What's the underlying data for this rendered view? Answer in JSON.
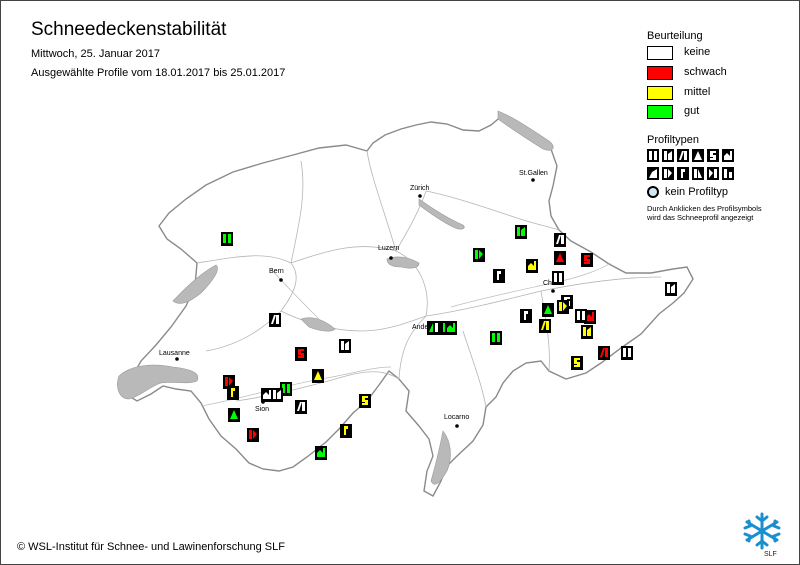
{
  "header": {
    "title": "Schneedeckenstabilität",
    "date": "Mittwoch, 25. Januar 2017",
    "range": "Ausgewählte Profile vom 18.01.2017 bis 25.01.2017"
  },
  "legend": {
    "title": "Beurteilung",
    "items": [
      {
        "label": "keine",
        "color": "#ffffff"
      },
      {
        "label": "schwach",
        "color": "#ff0000"
      },
      {
        "label": "mittel",
        "color": "#ffff00"
      },
      {
        "label": "gut",
        "color": "#00ff00"
      }
    ]
  },
  "profile_types": {
    "title": "Profiltypen",
    "no_type_label": "kein Profiltyp",
    "note_line1": "Durch Anklicken des Profilsymbols",
    "note_line2": "wird das Schneeprofil angezeigt"
  },
  "cities": {
    "zurich": "Zürich",
    "st_gallen": "St.Gallen",
    "luzern": "Luzern",
    "bern": "Bern",
    "chur": "Chur",
    "andermatt": "Andermatt",
    "lausanne": "Lausanne",
    "sion": "Sion",
    "locarno": "Locarno"
  },
  "profiles": [
    {
      "rating": "gut"
    },
    {
      "rating": "gut"
    },
    {
      "rating": "keine"
    },
    {
      "rating": "schwach"
    },
    {
      "rating": "schwach"
    },
    {
      "rating": "gut"
    },
    {
      "rating": "keine"
    },
    {
      "rating": "mittel"
    },
    {
      "rating": "keine"
    },
    {
      "rating": "keine"
    },
    {
      "rating": "keine"
    },
    {
      "rating": "keine"
    },
    {
      "rating": "gut"
    },
    {
      "rating": "mittel"
    },
    {
      "rating": "keine"
    },
    {
      "rating": "schwach"
    },
    {
      "rating": "keine"
    },
    {
      "rating": "mittel"
    },
    {
      "rating": "mittel"
    },
    {
      "rating": "schwach"
    },
    {
      "rating": "gut"
    },
    {
      "rating": "keine"
    },
    {
      "rating": "gut"
    },
    {
      "rating": "gut"
    },
    {
      "rating": "gut"
    },
    {
      "rating": "keine"
    },
    {
      "rating": "schwach"
    },
    {
      "rating": "mittel"
    },
    {
      "rating": "mittel"
    },
    {
      "rating": "schwach"
    },
    {
      "rating": "mittel"
    },
    {
      "rating": "keine"
    },
    {
      "rating": "gut"
    },
    {
      "rating": "keine"
    },
    {
      "rating": "keine"
    },
    {
      "rating": "mittel"
    },
    {
      "rating": "gut"
    },
    {
      "rating": "schwach"
    },
    {
      "rating": "mittel"
    },
    {
      "rating": "gut"
    },
    {
      "rating": "keine"
    }
  ],
  "footer": {
    "copyright": "© WSL-Institut für Schnee- und Lawinenforschung SLF",
    "logo_text": "SLF"
  }
}
